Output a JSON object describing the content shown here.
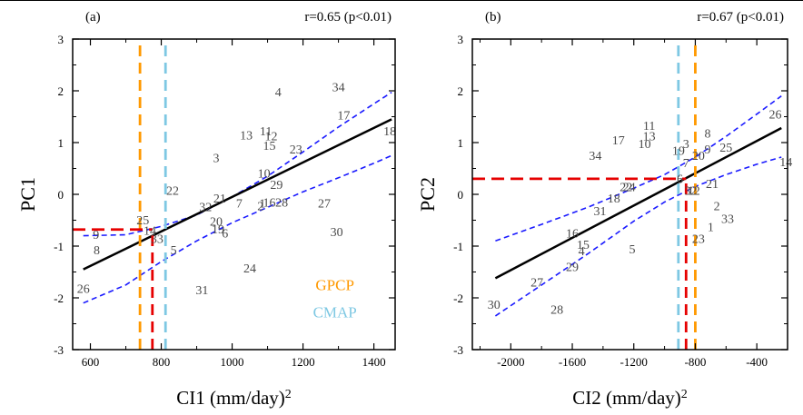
{
  "chart_data": [
    {
      "type": "scatter",
      "panel_label": "(a)",
      "stat_text": "r=0.65 (p<0.01)",
      "xlabel": "CI1  (mm/day)",
      "xlabel_sup": "2",
      "ylabel": "PC1",
      "xlim": [
        550,
        1460
      ],
      "ylim": [
        -3,
        3
      ],
      "xticks": [
        600,
        800,
        1000,
        1200,
        1400
      ],
      "yticks": [
        -3,
        -2,
        -1,
        0,
        1,
        2,
        3
      ],
      "points": [
        {
          "label": "1",
          "x": 1085,
          "y": -0.2
        },
        {
          "label": "2",
          "x": 1080,
          "y": -0.25
        },
        {
          "label": "3",
          "x": 955,
          "y": 0.68
        },
        {
          "label": "4",
          "x": 1130,
          "y": 1.95
        },
        {
          "label": "5",
          "x": 835,
          "y": -1.1
        },
        {
          "label": "6",
          "x": 980,
          "y": -0.78
        },
        {
          "label": "7",
          "x": 1020,
          "y": -0.2
        },
        {
          "label": "8",
          "x": 618,
          "y": -1.1
        },
        {
          "label": "9",
          "x": 616,
          "y": -0.8
        },
        {
          "label": "10",
          "x": 1090,
          "y": 0.38
        },
        {
          "label": "11",
          "x": 1095,
          "y": 1.2
        },
        {
          "label": "12",
          "x": 1110,
          "y": 1.1
        },
        {
          "label": "13",
          "x": 1040,
          "y": 1.12
        },
        {
          "label": "14",
          "x": 768,
          "y": -0.72
        },
        {
          "label": "15",
          "x": 1105,
          "y": 0.92
        },
        {
          "label": "16",
          "x": 1105,
          "y": -0.18
        },
        {
          "label": "17",
          "x": 1315,
          "y": 1.5
        },
        {
          "label": "18",
          "x": 1445,
          "y": 1.2
        },
        {
          "label": "19",
          "x": 960,
          "y": -0.7
        },
        {
          "label": "20",
          "x": 955,
          "y": -0.55
        },
        {
          "label": "21",
          "x": 965,
          "y": -0.1
        },
        {
          "label": "22",
          "x": 832,
          "y": 0.05
        },
        {
          "label": "23",
          "x": 1180,
          "y": 0.85
        },
        {
          "label": "24",
          "x": 1050,
          "y": -1.45
        },
        {
          "label": "25",
          "x": 748,
          "y": -0.52
        },
        {
          "label": "26",
          "x": 580,
          "y": -1.85
        },
        {
          "label": "27",
          "x": 1260,
          "y": -0.2
        },
        {
          "label": "28",
          "x": 1140,
          "y": -0.18
        },
        {
          "label": "29",
          "x": 1125,
          "y": 0.16
        },
        {
          "label": "30",
          "x": 1295,
          "y": -0.75
        },
        {
          "label": "31",
          "x": 915,
          "y": -1.87
        },
        {
          "label": "32",
          "x": 925,
          "y": -0.27
        },
        {
          "label": "33",
          "x": 788,
          "y": -0.88
        },
        {
          "label": "34",
          "x": 1300,
          "y": 2.05
        }
      ],
      "regression": {
        "x": [
          580,
          1450
        ],
        "y": [
          -1.45,
          1.45
        ]
      },
      "ci_upper": {
        "x": [
          580,
          700,
          800,
          900,
          1000,
          1100,
          1200,
          1300,
          1400,
          1450
        ],
        "y": [
          -0.8,
          -0.78,
          -0.62,
          -0.4,
          -0.05,
          0.35,
          0.82,
          1.3,
          1.75,
          1.97
        ]
      },
      "ci_lower": {
        "x": [
          580,
          700,
          800,
          900,
          1000,
          1100,
          1200,
          1300,
          1400,
          1450
        ],
        "y": [
          -2.1,
          -1.75,
          -1.3,
          -0.9,
          -0.55,
          -0.25,
          0.05,
          0.32,
          0.6,
          0.75
        ]
      },
      "vlines": [
        {
          "x": 740,
          "color": "#ff9900"
        },
        {
          "x": 812,
          "color": "#7ec8e3"
        },
        {
          "x": 775,
          "color": "#e60000",
          "from": -3,
          "to": -0.75
        }
      ],
      "hline": {
        "y": -0.68,
        "color": "#e60000",
        "from": 550,
        "to": 775
      },
      "legend": [
        {
          "text": "GPCP",
          "color": "#ff9900"
        },
        {
          "text": "CMAP",
          "color": "#7ec8e3"
        }
      ],
      "legend_position": "bottom-right"
    },
    {
      "type": "scatter",
      "panel_label": "(b)",
      "stat_text": "r=0.67 (p<0.01)",
      "xlabel": "CI2  (mm/day)",
      "xlabel_sup": "2",
      "ylabel": "PC2",
      "xlim": [
        -2250,
        -200
      ],
      "ylim": [
        -3,
        3
      ],
      "xticks": [
        -2000,
        -1600,
        -1200,
        -800,
        -400
      ],
      "yticks": [
        -3,
        -2,
        -1,
        0,
        1,
        2,
        3
      ],
      "points": [
        {
          "label": "1",
          "x": -700,
          "y": -0.65
        },
        {
          "label": "2",
          "x": -660,
          "y": -0.25
        },
        {
          "label": "3",
          "x": -860,
          "y": 0.95
        },
        {
          "label": "4",
          "x": -1540,
          "y": -1.12
        },
        {
          "label": "5",
          "x": -1210,
          "y": -1.08
        },
        {
          "label": "6",
          "x": -900,
          "y": 0.28
        },
        {
          "label": "7",
          "x": -860,
          "y": 0.58
        },
        {
          "label": "8",
          "x": -720,
          "y": 1.15
        },
        {
          "label": "9",
          "x": -720,
          "y": 0.85
        },
        {
          "label": "10",
          "x": -1130,
          "y": 0.95
        },
        {
          "label": "11",
          "x": -1100,
          "y": 1.3
        },
        {
          "label": "12",
          "x": -810,
          "y": 0.05
        },
        {
          "label": "13",
          "x": -1100,
          "y": 1.1
        },
        {
          "label": "14",
          "x": -210,
          "y": 0.6
        },
        {
          "label": "15",
          "x": -1530,
          "y": -1.0
        },
        {
          "label": "16",
          "x": -1600,
          "y": -0.78
        },
        {
          "label": "17",
          "x": -1300,
          "y": 1.02
        },
        {
          "label": "18",
          "x": -1330,
          "y": -0.1
        },
        {
          "label": "19",
          "x": -910,
          "y": 0.82
        },
        {
          "label": "20",
          "x": -780,
          "y": 0.72
        },
        {
          "label": "21",
          "x": -690,
          "y": 0.18
        },
        {
          "label": "22",
          "x": -1250,
          "y": 0.12
        },
        {
          "label": "23",
          "x": -780,
          "y": -0.88
        },
        {
          "label": "24",
          "x": -1230,
          "y": 0.12
        },
        {
          "label": "25",
          "x": -600,
          "y": 0.88
        },
        {
          "label": "26",
          "x": -280,
          "y": 1.52
        },
        {
          "label": "27",
          "x": -1830,
          "y": -1.72
        },
        {
          "label": "28",
          "x": -1700,
          "y": -2.25
        },
        {
          "label": "29",
          "x": -1600,
          "y": -1.43
        },
        {
          "label": "30",
          "x": -2110,
          "y": -2.15
        },
        {
          "label": "31",
          "x": -1420,
          "y": -0.35
        },
        {
          "label": "32",
          "x": -830,
          "y": 0.05
        },
        {
          "label": "33",
          "x": -590,
          "y": -0.5
        },
        {
          "label": "34",
          "x": -1450,
          "y": 0.72
        }
      ],
      "regression": {
        "x": [
          -2100,
          -240
        ],
        "y": [
          -1.62,
          1.28
        ]
      },
      "ci_upper": {
        "x": [
          -2100,
          -1800,
          -1500,
          -1200,
          -1000,
          -800,
          -600,
          -400,
          -240
        ],
        "y": [
          -0.9,
          -0.58,
          -0.25,
          0.12,
          0.38,
          0.72,
          1.12,
          1.55,
          1.9
        ]
      },
      "ci_lower": {
        "x": [
          -2100,
          -1800,
          -1500,
          -1200,
          -1000,
          -800,
          -600,
          -400,
          -240
        ],
        "y": [
          -2.35,
          -1.75,
          -1.15,
          -0.52,
          -0.15,
          0.15,
          0.38,
          0.58,
          0.72
        ]
      },
      "vlines": [
        {
          "x": -910,
          "color": "#7ec8e3"
        },
        {
          "x": -800,
          "color": "#ff9900"
        },
        {
          "x": -860,
          "color": "#e60000",
          "from": -3,
          "to": 0.25
        }
      ],
      "hline": {
        "y": 0.3,
        "color": "#e60000",
        "from": -2250,
        "to": -860
      }
    }
  ]
}
